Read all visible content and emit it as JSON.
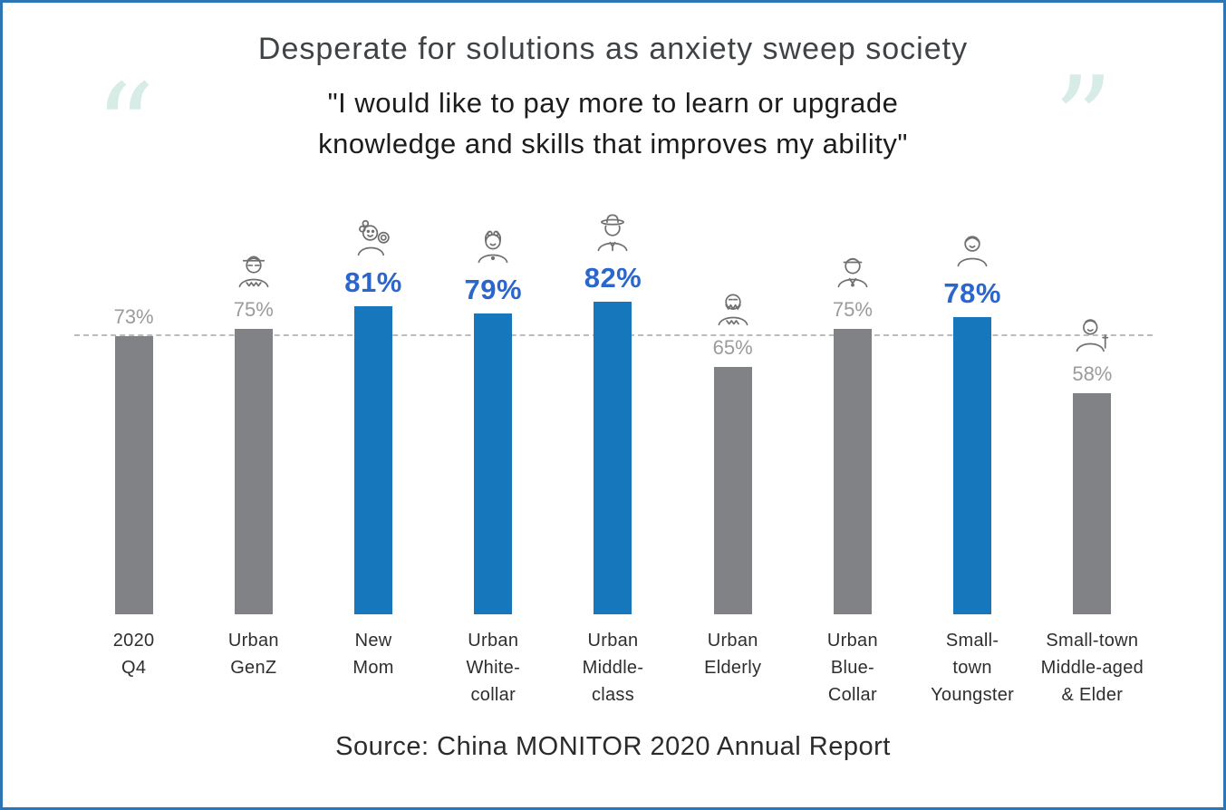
{
  "frame": {
    "border_color": "#2e75b6"
  },
  "header": {
    "title": "Desperate for solutions as anxiety sweep society",
    "quote_line1": "\"I would like to pay more to learn or upgrade",
    "quote_line2": "knowledge and skills that improves my ability\"",
    "open_quote": "“",
    "close_quote": "”",
    "quote_mark_color": "#d7ebe7"
  },
  "chart_data": {
    "type": "bar",
    "title": "Desperate for solutions as anxiety sweep society",
    "categories": [
      "2020 Q4",
      "Urban GenZ",
      "New Mom",
      "Urban White-collar",
      "Urban Middle-class",
      "Urban Elderly",
      "Urban Blue-Collar",
      "Small-town Youngster",
      "Small-town Middle-aged & Elder"
    ],
    "category_lines": [
      [
        "2020",
        "Q4"
      ],
      [
        "Urban",
        "GenZ"
      ],
      [
        "New",
        "Mom"
      ],
      [
        "Urban",
        "White-",
        "collar"
      ],
      [
        "Urban",
        "Middle-",
        "class"
      ],
      [
        "Urban",
        "Elderly"
      ],
      [
        "Urban",
        "Blue-",
        "Collar"
      ],
      [
        "Small-",
        "town",
        "Youngster"
      ],
      [
        "Small-town",
        "Middle-aged",
        "& Elder"
      ]
    ],
    "values": [
      73,
      75,
      81,
      79,
      82,
      65,
      75,
      78,
      58
    ],
    "labels": [
      "73%",
      "75%",
      "81%",
      "79%",
      "82%",
      "65%",
      "75%",
      "78%",
      "58%"
    ],
    "highlighted": [
      false,
      false,
      true,
      true,
      true,
      false,
      false,
      true,
      false
    ],
    "icons": [
      null,
      "genz-icon",
      "new-mom-icon",
      "white-collar-icon",
      "middle-class-icon",
      "elderly-icon",
      "blue-collar-icon",
      "youngster-icon",
      "middle-aged-elder-icon"
    ],
    "baseline_value": 73,
    "ylim": [
      0,
      100
    ],
    "grid": false,
    "legend": false,
    "bar_color_default": "#808285",
    "bar_color_highlight": "#1777bc",
    "label_color_default": "#9b9b9b",
    "label_color_highlight": "#2b66cc",
    "baseline_color": "#bcbcbc"
  },
  "footer": {
    "source": "Source: China MONITOR 2020 Annual Report"
  }
}
